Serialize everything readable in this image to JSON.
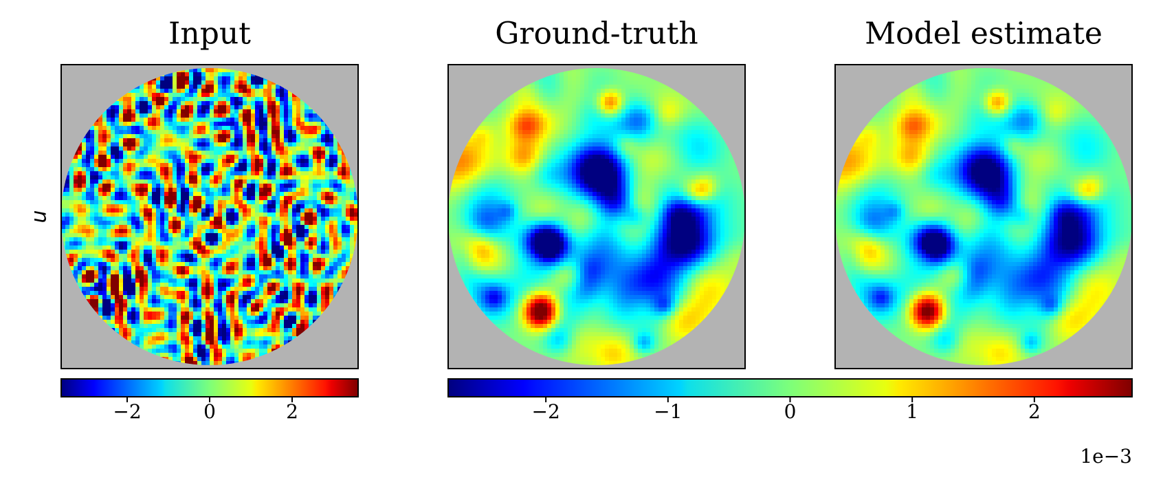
{
  "figure": {
    "row_label": "u",
    "panels": [
      {
        "title": "Input"
      },
      {
        "title": "Ground-truth"
      },
      {
        "title": "Model estimate"
      }
    ],
    "colors": {
      "masked_background": "#b3b3b3",
      "frame": "#000000",
      "colormap": "jet"
    }
  },
  "chart_data": [
    {
      "type": "heatmap",
      "title": "Input",
      "ylabel": "u",
      "domain": "disk",
      "colormap": "jet",
      "colorbar": {
        "range": [
          -3.6,
          3.6
        ],
        "ticks": [
          -2,
          0,
          2
        ],
        "tick_labels": [
          "−2",
          "0",
          "2"
        ],
        "offset_text": ""
      }
    },
    {
      "type": "heatmap",
      "title": "Ground-truth",
      "domain": "disk",
      "colormap": "jet",
      "shared_colorbar": true
    },
    {
      "type": "heatmap",
      "title": "Model estimate",
      "domain": "disk",
      "colormap": "jet",
      "shared_colorbar": true
    },
    {
      "type": "colorbar",
      "applies_to": [
        "Ground-truth",
        "Model estimate"
      ],
      "colormap": "jet",
      "range": [
        -2.8,
        2.8
      ],
      "ticks": [
        -2,
        -1,
        0,
        1,
        2
      ],
      "tick_labels": [
        "−2",
        "−1",
        "0",
        "1",
        "2"
      ],
      "offset_text": "1e−3"
    }
  ]
}
